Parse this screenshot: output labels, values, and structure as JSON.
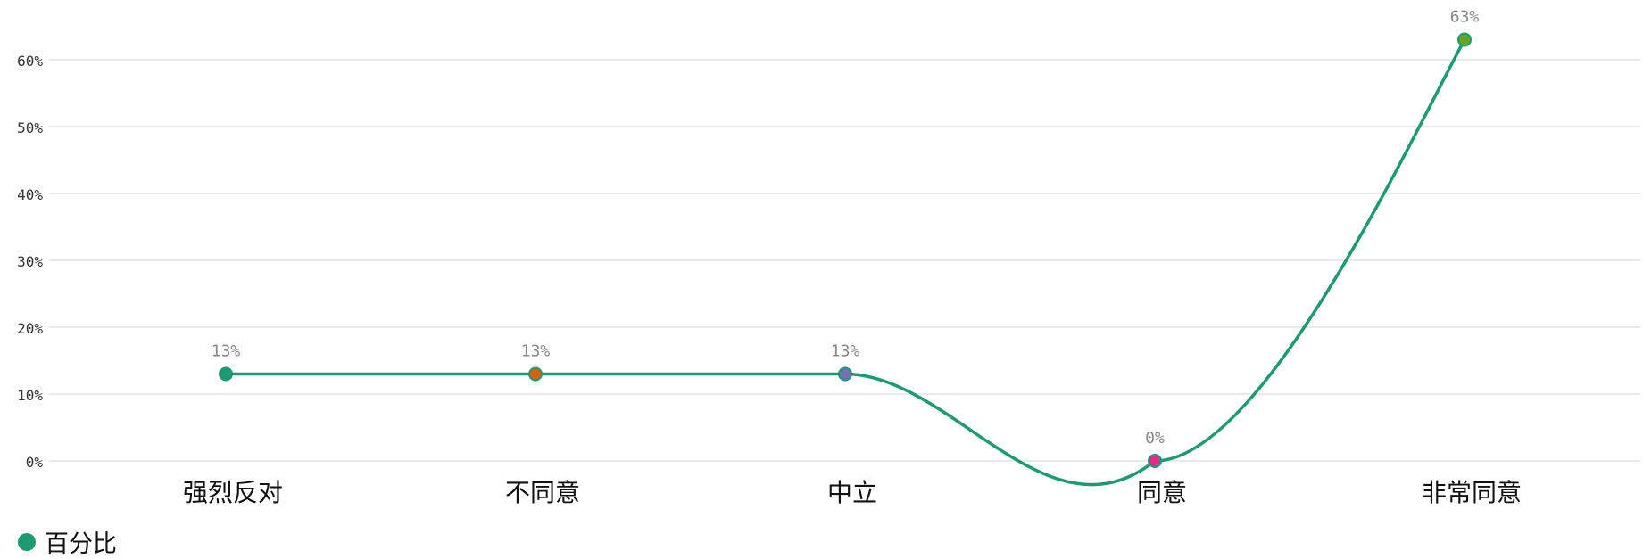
{
  "chart_data": {
    "type": "line",
    "categories": [
      "强烈反对",
      "不同意",
      "中立",
      "同意",
      "非常同意"
    ],
    "series": [
      {
        "name": "百分比",
        "values": [
          13,
          13,
          13,
          0,
          63
        ],
        "data_labels": [
          "13%",
          "13%",
          "13%",
          "0%",
          "63%"
        ]
      }
    ],
    "yticks": [
      "0%",
      "10%",
      "20%",
      "30%",
      "40%",
      "50%",
      "60%"
    ],
    "ylim": [
      0,
      63
    ],
    "grid": true,
    "legend": "bottom-left",
    "xlabel": "",
    "ylabel": ""
  },
  "colors": {
    "line": "#1b9a74",
    "grid": "#e3e3e3",
    "point_colors": [
      "#1b9a74",
      "#d95f02",
      "#7570b3",
      "#e7298a",
      "#66a61e"
    ]
  }
}
